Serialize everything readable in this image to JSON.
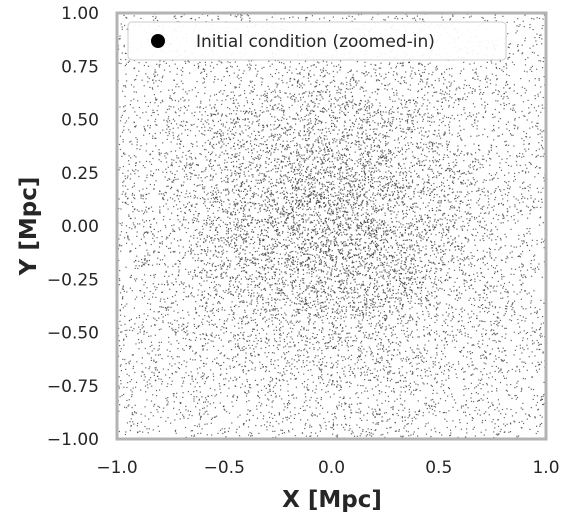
{
  "chart_data": {
    "type": "scatter",
    "title": "",
    "xlabel": "X [Mpc]",
    "ylabel": "Y [Mpc]",
    "xlim": [
      -1.0,
      1.0
    ],
    "ylim": [
      -1.0,
      1.0
    ],
    "x_ticks": [
      "−1.0",
      "−0.5",
      "0.0",
      "0.5",
      "1.0"
    ],
    "x_tick_values": [
      -1.0,
      -0.5,
      0.0,
      0.5,
      1.0
    ],
    "y_ticks": [
      "1.00",
      "0.75",
      "0.50",
      "0.25",
      "0.00",
      "−0.25",
      "−0.50",
      "−0.75",
      "−1.00"
    ],
    "y_tick_values": [
      1.0,
      0.75,
      0.5,
      0.25,
      0.0,
      -0.25,
      -0.5,
      -0.75,
      -1.0
    ],
    "grid": false,
    "legend": {
      "placement": "top-left",
      "entries": [
        "Initial condition (zoomed-in)"
      ]
    },
    "series": [
      {
        "name": "Initial condition (zoomed-in)",
        "color": "#000000",
        "distribution": "dense uniform particle field, concentrated toward the center (0, 0)"
      }
    ],
    "colors": {
      "frame": "#b3b3b3",
      "points": "#333333"
    }
  }
}
